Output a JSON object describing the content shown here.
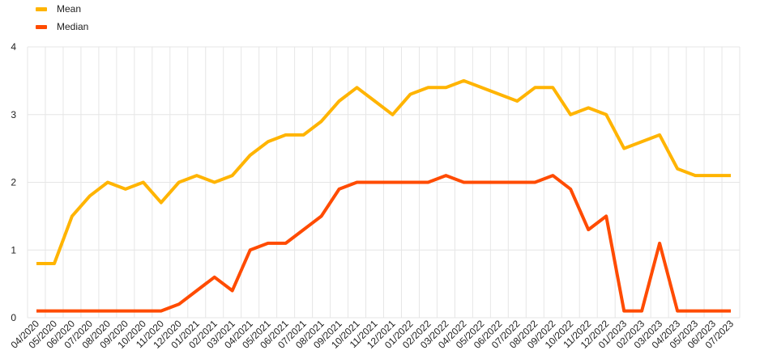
{
  "chart_data": {
    "type": "line",
    "title": "",
    "xlabel": "",
    "ylabel": "",
    "ylim": [
      0,
      4
    ],
    "yticks": [
      "0",
      "1",
      "2",
      "3",
      "4"
    ],
    "grid": true,
    "legend_position": "top-left",
    "categories": [
      "04/2020",
      "05/2020",
      "06/2020",
      "07/2020",
      "08/2020",
      "09/2020",
      "10/2020",
      "11/2020",
      "12/2020",
      "01/2021",
      "02/2021",
      "03/2021",
      "04/2021",
      "05/2021",
      "06/2021",
      "07/2021",
      "08/2021",
      "09/2021",
      "10/2021",
      "11/2021",
      "12/2021",
      "01/2022",
      "02/2022",
      "03/2022",
      "04/2022",
      "05/2022",
      "06/2022",
      "07/2022",
      "08/2022",
      "09/2022",
      "10/2022",
      "11/2022",
      "12/2022",
      "01/2023",
      "02/2023",
      "03/2023",
      "04/2023",
      "05/2023",
      "06/2023",
      "07/2023"
    ],
    "series": [
      {
        "name": "Mean",
        "color": "#ffb400",
        "x_index": [
          0,
          1,
          2,
          3,
          4,
          5,
          6,
          7,
          8,
          9,
          10,
          11,
          12,
          13,
          14,
          15,
          16,
          17,
          18,
          19,
          20,
          21,
          22,
          23,
          24,
          25,
          26,
          27,
          28,
          29,
          30,
          31,
          32,
          33,
          34,
          35,
          36,
          37,
          38,
          39
        ],
        "values": [
          0.8,
          0.8,
          1.5,
          1.8,
          2.0,
          1.9,
          2.0,
          1.7,
          2.0,
          2.1,
          2.0,
          2.1,
          2.4,
          2.6,
          2.7,
          2.7,
          2.9,
          3.2,
          3.4,
          3.2,
          3.0,
          3.3,
          3.4,
          3.4,
          3.5,
          3.4,
          3.3,
          3.2,
          3.4,
          3.4,
          3.0,
          3.1,
          3.0,
          2.5,
          2.6,
          2.7,
          2.2,
          2.1,
          2.1,
          2.1
        ]
      },
      {
        "name": "Median",
        "color": "#ff4b00",
        "x_index": [
          0,
          1,
          2,
          3,
          4,
          5,
          6,
          7,
          8,
          9,
          10,
          11,
          12,
          13,
          14,
          15,
          16,
          17,
          18,
          19,
          20,
          21,
          22,
          23,
          24,
          25,
          26,
          27,
          28,
          29,
          30,
          31,
          32,
          33,
          34,
          35,
          36,
          37,
          38,
          39
        ],
        "values": [
          0.1,
          0.1,
          0.1,
          0.1,
          0.1,
          0.1,
          0.1,
          0.1,
          0.2,
          0.4,
          0.6,
          0.4,
          1.0,
          1.1,
          1.1,
          1.3,
          1.5,
          1.9,
          2.0,
          2.0,
          2.0,
          2.0,
          2.0,
          2.1,
          2.0,
          2.0,
          2.0,
          2.0,
          2.0,
          2.1,
          1.9,
          1.3,
          1.5,
          0.1,
          0.1,
          1.1,
          0.1,
          0.1,
          0.1,
          0.1
        ]
      }
    ]
  }
}
